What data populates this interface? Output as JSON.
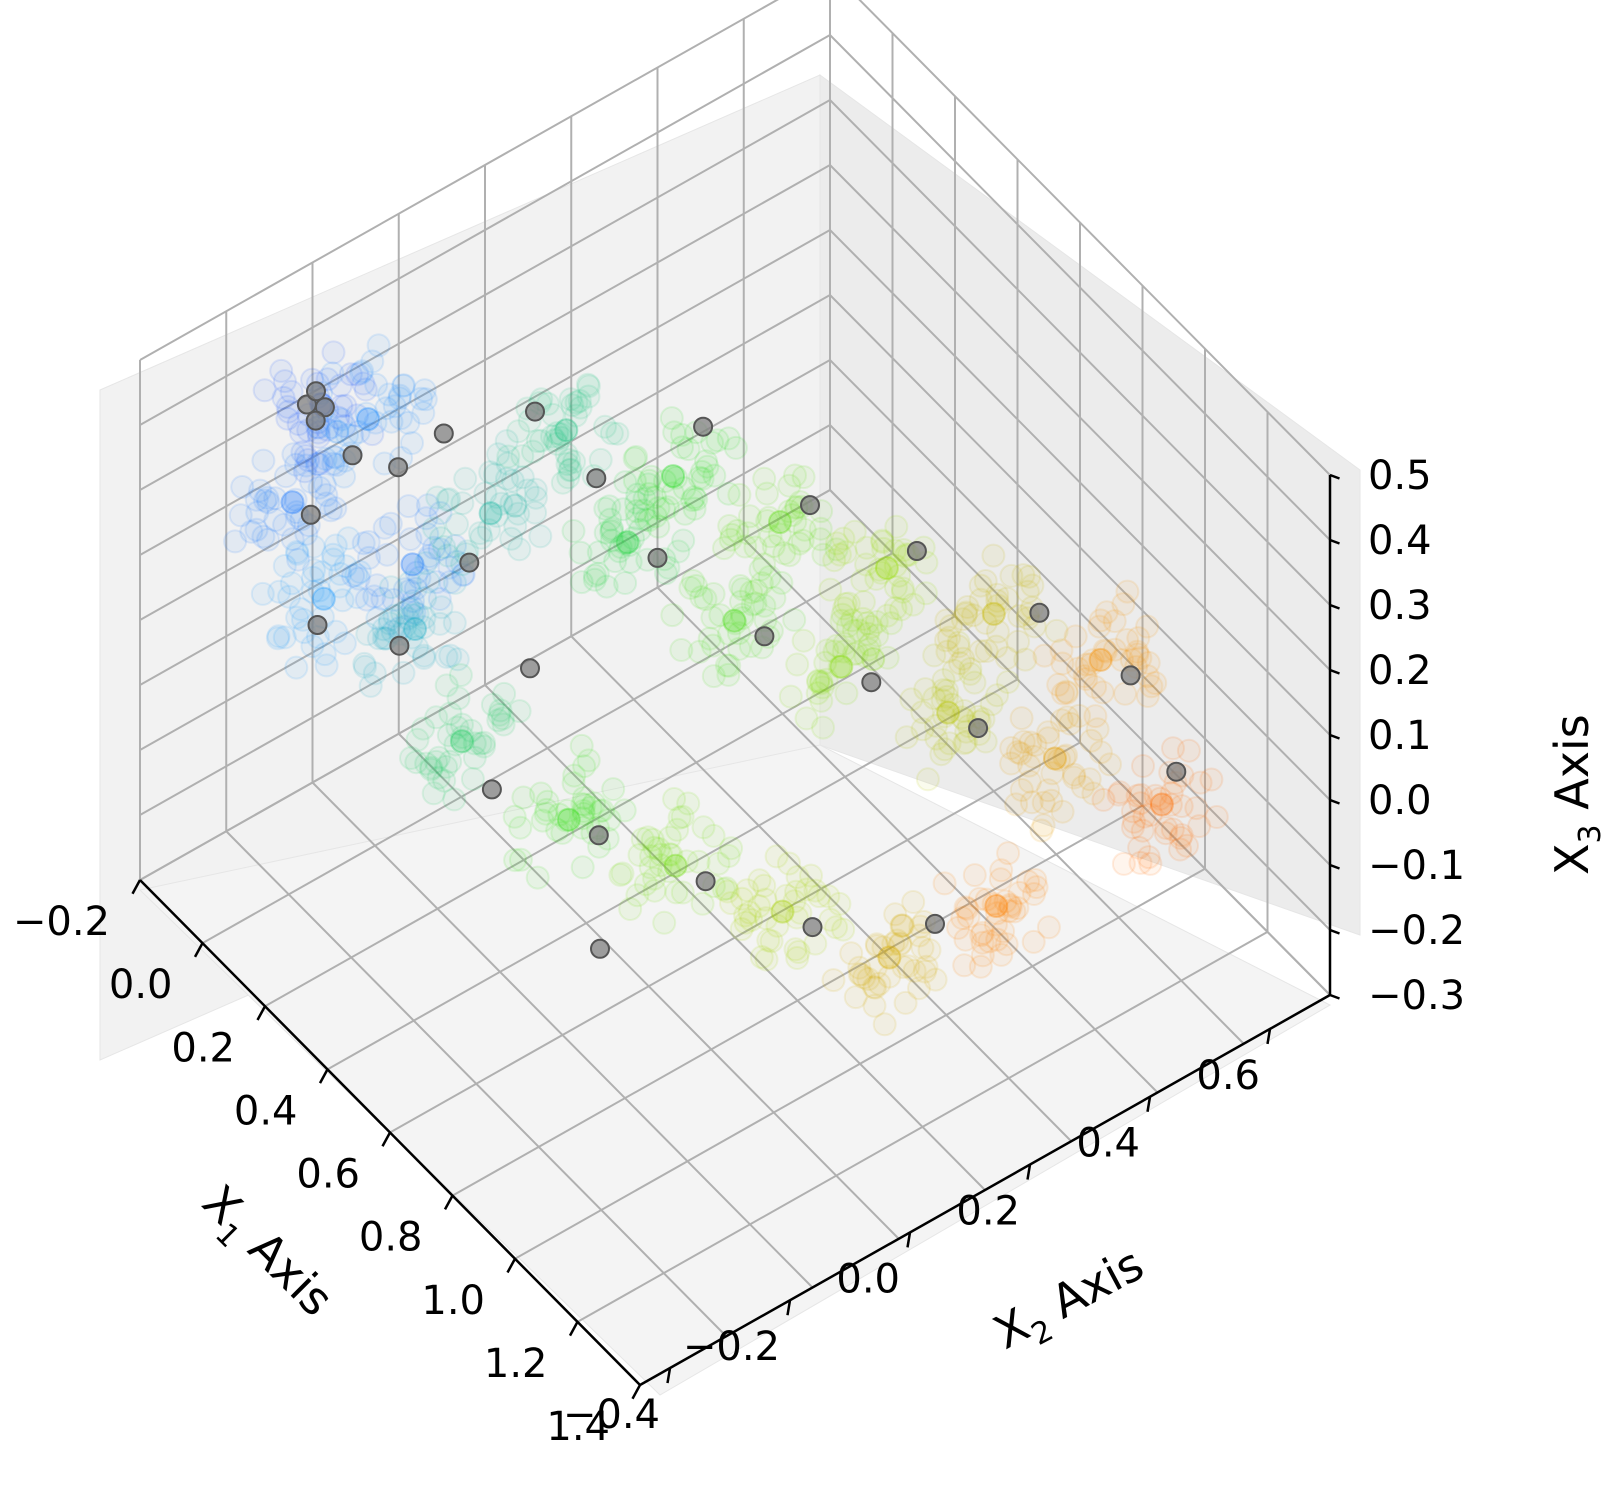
{
  "chart_data": {
    "type": "scatter3d",
    "title": "",
    "axes": {
      "x1": {
        "label": "X",
        "subscript": "1",
        "suffix": " Axis",
        "ticks": [
          "−0.2",
          "0.0",
          "0.2",
          "0.4",
          "0.6",
          "0.8",
          "1.0",
          "1.2",
          "1.4"
        ],
        "range": [
          -0.2,
          1.4
        ]
      },
      "x2": {
        "label": "X",
        "subscript": "2",
        "suffix": " Axis",
        "ticks": [
          "−0.4",
          "−0.2",
          "0.0",
          "0.2",
          "0.4",
          "0.6"
        ],
        "range": [
          -0.45,
          0.7
        ]
      },
      "x3": {
        "label": "X",
        "subscript": "3",
        "suffix": " Axis",
        "ticks": [
          "−0.3",
          "−0.2",
          "−0.1",
          "0.0",
          "0.1",
          "0.2",
          "0.3",
          "0.4",
          "0.5"
        ],
        "range": [
          -0.3,
          0.5
        ]
      }
    },
    "grid": true,
    "colors": {
      "pane": "#f2f2f2",
      "grid": "#b0b0b0",
      "gray_point_fill": "#808080",
      "gray_point_edge": "#555555",
      "gradient": [
        "#1f3fff",
        "#1fa0ff",
        "#22dd22",
        "#99dd00",
        "#ff8800",
        "#ff1100"
      ]
    },
    "series": [
      {
        "name": "",
        "style": "faint colored cloud (color follows X1)",
        "points": [
          [
            -0.1,
            -0.2,
            0.35
          ],
          [
            0.0,
            -0.3,
            0.3
          ],
          [
            0.05,
            -0.2,
            0.4
          ],
          [
            0.1,
            -0.3,
            0.2
          ],
          [
            0.0,
            -0.1,
            0.1
          ],
          [
            0.2,
            -0.2,
            0.15
          ],
          [
            0.25,
            -0.1,
            0.3
          ],
          [
            0.3,
            0.0,
            0.4
          ],
          [
            0.35,
            -0.2,
            0.05
          ],
          [
            0.4,
            0.05,
            0.25
          ],
          [
            0.45,
            0.1,
            0.35
          ],
          [
            0.5,
            -0.1,
            -0.05
          ],
          [
            0.55,
            0.15,
            0.15
          ],
          [
            0.6,
            0.2,
            0.3
          ],
          [
            0.65,
            0.0,
            -0.1
          ],
          [
            0.7,
            0.25,
            0.1
          ],
          [
            0.75,
            0.3,
            0.25
          ],
          [
            0.8,
            0.1,
            -0.15
          ],
          [
            0.85,
            0.35,
            0.05
          ],
          [
            0.9,
            0.4,
            0.2
          ],
          [
            0.95,
            0.2,
            -0.2
          ],
          [
            1.0,
            0.45,
            0.0
          ],
          [
            1.05,
            0.5,
            0.15
          ],
          [
            1.1,
            0.3,
            -0.1
          ],
          [
            1.15,
            0.55,
            -0.05
          ]
        ]
      },
      {
        "name": "",
        "style": "gray markers",
        "points": [
          [
            -0.05,
            -0.25,
            0.4
          ],
          [
            -0.05,
            -0.22,
            0.38
          ],
          [
            -0.04,
            -0.24,
            0.42
          ],
          [
            -0.06,
            -0.23,
            0.36
          ],
          [
            0.0,
            -0.2,
            0.32
          ],
          [
            0.02,
            -0.28,
            0.28
          ],
          [
            0.05,
            -0.15,
            0.3
          ],
          [
            0.08,
            -0.3,
            0.15
          ],
          [
            0.1,
            -0.1,
            0.35
          ],
          [
            0.15,
            -0.2,
            0.1
          ],
          [
            0.2,
            0.0,
            0.38
          ],
          [
            0.22,
            -0.12,
            0.22
          ],
          [
            0.28,
            -0.05,
            0.05
          ],
          [
            0.3,
            0.05,
            0.3
          ],
          [
            0.35,
            -0.15,
            -0.05
          ],
          [
            0.4,
            0.1,
            0.2
          ],
          [
            0.45,
            0.15,
            0.4
          ],
          [
            0.5,
            -0.05,
            -0.1
          ],
          [
            0.55,
            0.2,
            0.1
          ],
          [
            0.6,
            0.25,
            0.3
          ],
          [
            0.65,
            0.05,
            -0.15
          ],
          [
            0.7,
            0.3,
            0.05
          ],
          [
            0.75,
            0.35,
            0.25
          ],
          [
            0.8,
            0.15,
            -0.2
          ],
          [
            0.85,
            0.4,
            0.0
          ],
          [
            0.95,
            0.45,
            0.2
          ],
          [
            1.0,
            0.25,
            -0.15
          ],
          [
            1.05,
            0.55,
            0.1
          ],
          [
            1.1,
            0.6,
            -0.05
          ],
          [
            0.6,
            -0.1,
            -0.2
          ]
        ]
      }
    ]
  }
}
